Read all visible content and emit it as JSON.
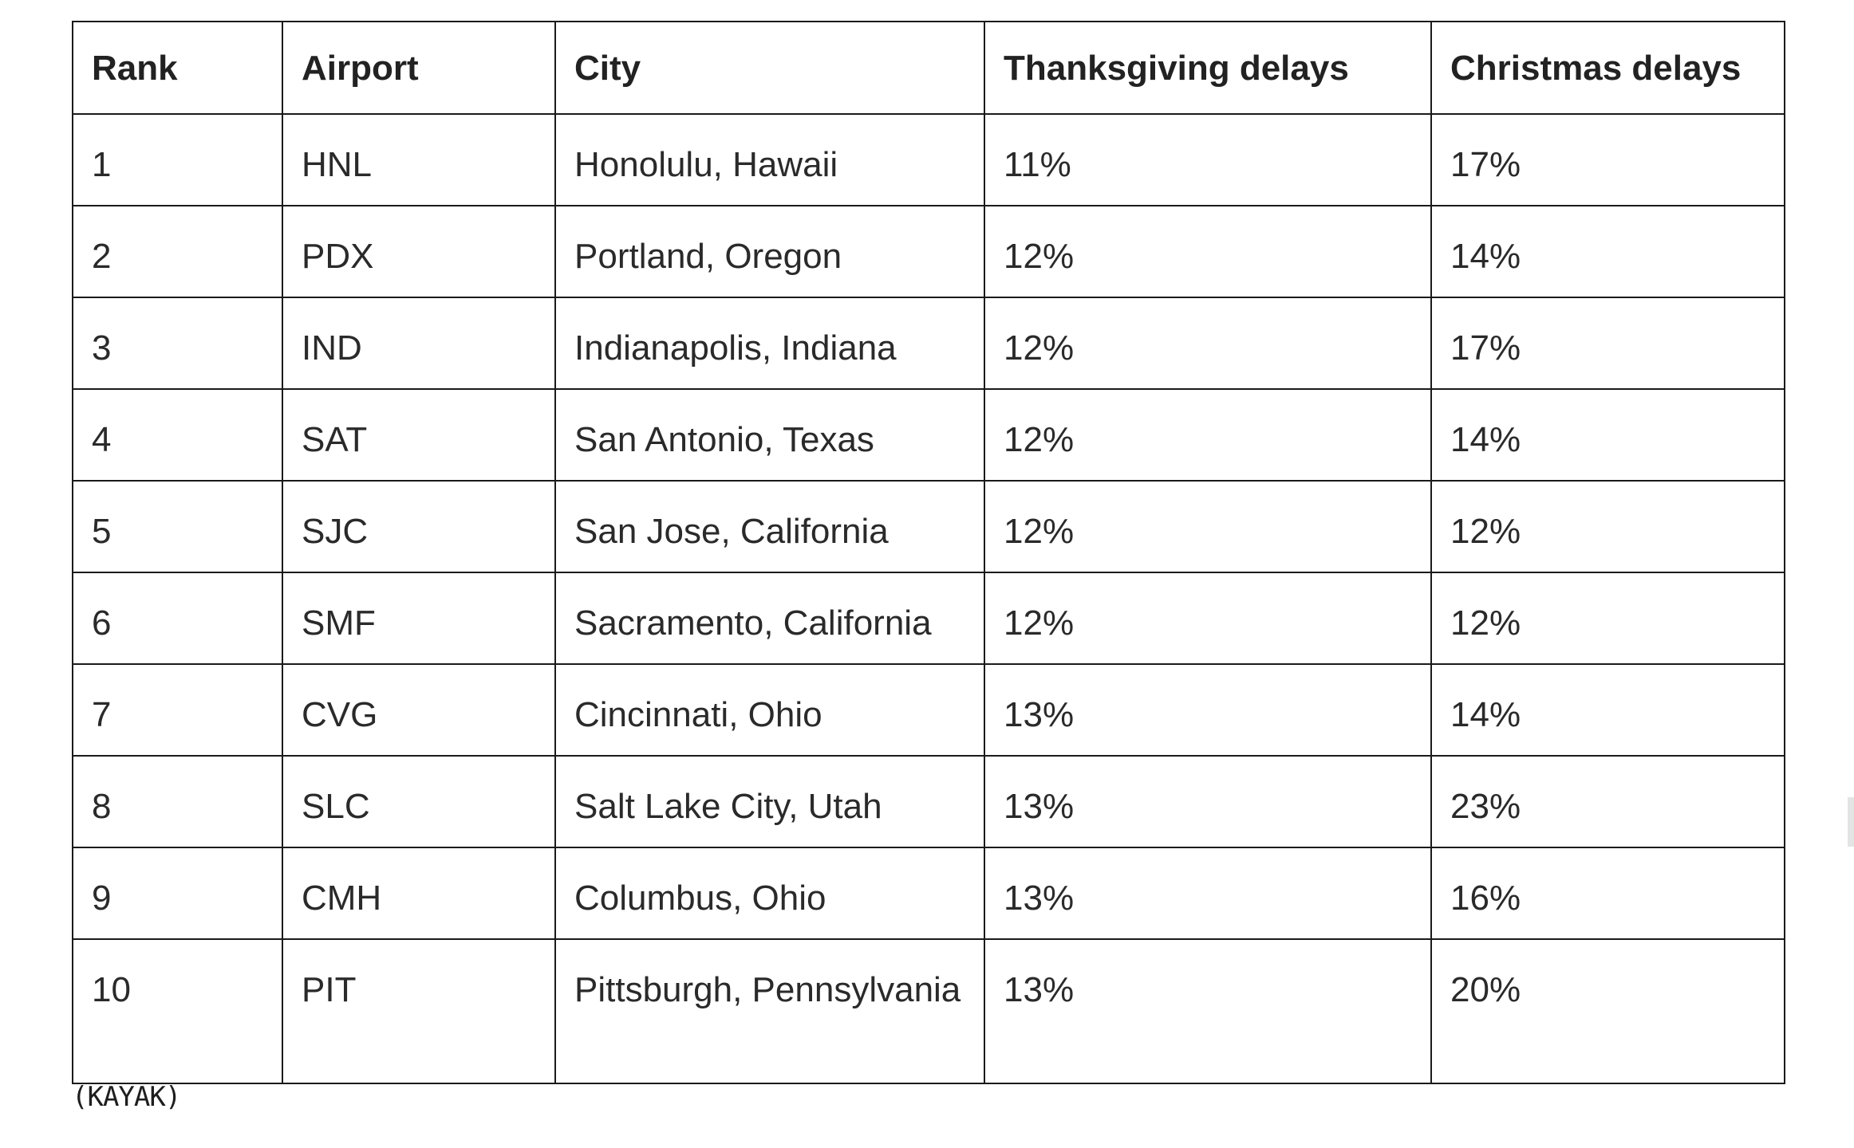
{
  "table": {
    "headers": [
      "Rank",
      "Airport",
      "City",
      "Thanksgiving delays",
      "Christmas delays"
    ],
    "rows": [
      [
        "1",
        "HNL",
        "Honolulu, Hawaii",
        "11%",
        "17%"
      ],
      [
        "2",
        "PDX",
        "Portland, Oregon",
        "12%",
        "14%"
      ],
      [
        "3",
        "IND",
        "Indianapolis, Indiana",
        "12%",
        "17%"
      ],
      [
        "4",
        "SAT",
        "San Antonio, Texas",
        "12%",
        "14%"
      ],
      [
        "5",
        "SJC",
        "San Jose, California",
        "12%",
        "12%"
      ],
      [
        "6",
        "SMF",
        "Sacramento, California",
        "12%",
        "12%"
      ],
      [
        "7",
        "CVG",
        "Cincinnati, Ohio",
        "13%",
        "14%"
      ],
      [
        "8",
        "SLC",
        "Salt Lake City, Utah",
        "13%",
        "23%"
      ],
      [
        "9",
        "CMH",
        "Columbus, Ohio",
        "13%",
        "16%"
      ],
      [
        "10",
        "PIT",
        "Pittsburgh, Pennsylvania",
        "13%",
        "20%"
      ]
    ]
  },
  "caption": "(KAYAK)"
}
